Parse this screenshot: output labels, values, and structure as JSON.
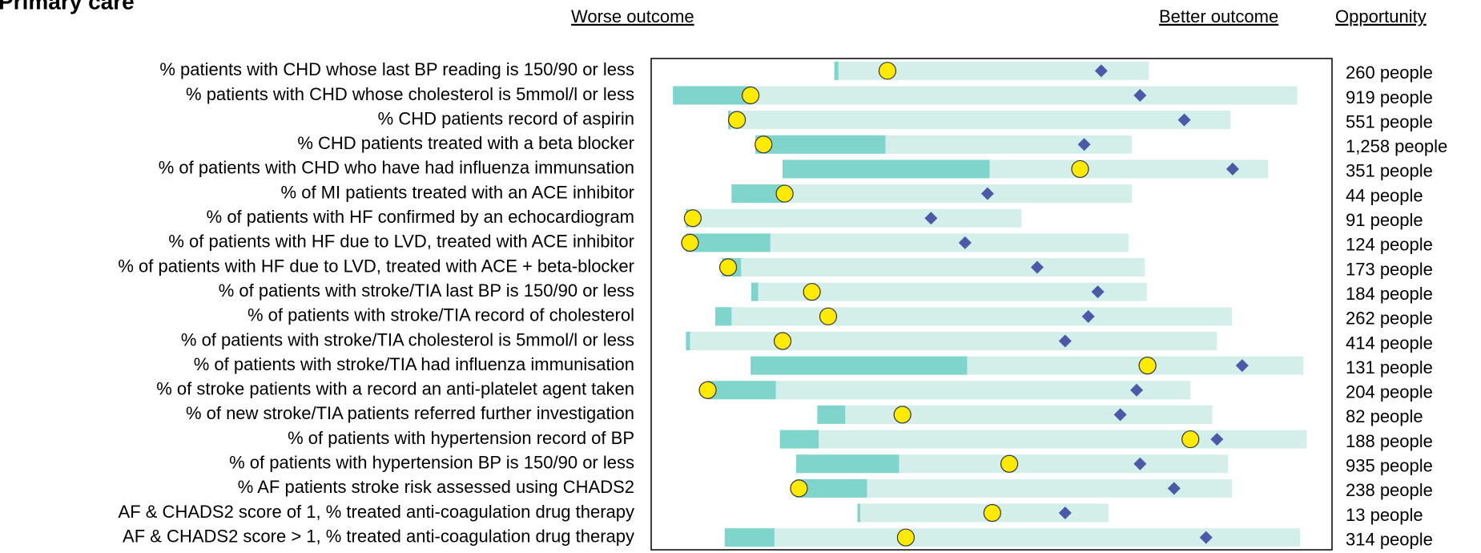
{
  "chart_data": {
    "type": "spine",
    "title": "Primary care",
    "worse_label": "Worse outcome",
    "better_label": "Better outcome",
    "opportunity_label": "Opportunity",
    "xlim": [
      0,
      100
    ],
    "range_color": "#d4eeea",
    "iqr_color": "#7fd5cc",
    "value_color": "#ffea00",
    "benchmark_color": "#4a5aa8",
    "categories": [
      "% patients with CHD whose last BP reading is 150/90 or less",
      "% patients with CHD whose cholesterol is 5mmol/l or less",
      "% CHD patients record of aspirin",
      "% CHD patients treated with a beta blocker",
      "% of patients with CHD who have had influenza immunsation",
      "% of MI patients treated with an ACE inhibitor",
      "% of patients with HF confirmed by an echocardiogram",
      "% of patients with HF due to LVD, treated with ACE inhibitor",
      "% of patients with HF due to LVD, treated with ACE + beta-blocker",
      "% of patients with stroke/TIA last BP is 150/90 or less",
      "% of patients with stroke/TIA record of cholesterol",
      "% of patients with stroke/TIA cholesterol is 5mmol/l or less",
      "% of patients with stroke/TIA had influenza immunisation",
      "% of stroke patients with a record an anti-platelet agent taken",
      "% of new stroke/TIA patients referred further investigation",
      "% of patients with hypertension record of BP",
      "% of patients with hypertension BP is 150/90 or less",
      "% AF patients stroke risk assessed using CHADS2",
      "AF & CHADS2 score of 1, % treated anti-coagulation drug therapy",
      "AF & CHADS2 score > 1, % treated anti-coagulation drug therapy"
    ],
    "min": [
      26.9,
      3.2,
      11.3,
      15.3,
      19.3,
      11.8,
      5.1,
      5.1,
      10.4,
      14.7,
      9.4,
      5.1,
      14.6,
      8.3,
      24.4,
      18.9,
      21.3,
      21.3,
      30.3,
      10.8
    ],
    "max": [
      73.1,
      94.9,
      85.1,
      70.6,
      90.6,
      70.6,
      54.4,
      70.1,
      72.5,
      72.8,
      85.3,
      83.1,
      95.8,
      79.2,
      82.4,
      96.3,
      84.7,
      85.3,
      67.2,
      95.3
    ],
    "q1": [
      26.9,
      3.2,
      11.3,
      15.3,
      19.3,
      11.8,
      5.1,
      5.1,
      10.4,
      14.7,
      9.4,
      5.1,
      14.6,
      8.3,
      24.4,
      18.9,
      21.3,
      21.3,
      30.3,
      10.8
    ],
    "q3": [
      27.5,
      14.6,
      11.7,
      34.4,
      49.7,
      19.6,
      5.4,
      17.5,
      13.2,
      15.7,
      11.8,
      5.7,
      46.4,
      18.3,
      28.5,
      24.6,
      36.4,
      31.7,
      30.7,
      18.1
    ],
    "values": [
      34.7,
      14.6,
      12.6,
      16.5,
      63.0,
      19.6,
      6.1,
      5.7,
      11.3,
      23.6,
      26.0,
      19.3,
      72.9,
      8.3,
      36.9,
      79.2,
      52.6,
      21.7,
      50.1,
      37.4
    ],
    "benchmark": [
      66.1,
      71.8,
      78.3,
      63.6,
      85.4,
      49.4,
      41.1,
      46.1,
      56.7,
      65.6,
      64.2,
      60.8,
      86.8,
      71.3,
      68.9,
      83.1,
      71.8,
      76.8,
      60.8,
      81.5
    ],
    "opportunity": [
      "260 people",
      "919 people",
      "551 people",
      "1,258 people",
      "351 people",
      "44 people",
      "91 people",
      "124 people",
      "173 people",
      "184 people",
      "262 people",
      "414 people",
      "131 people",
      "204 people",
      "82 people",
      "188 people",
      "935 people",
      "238 people",
      "13 people",
      "314 people"
    ]
  }
}
